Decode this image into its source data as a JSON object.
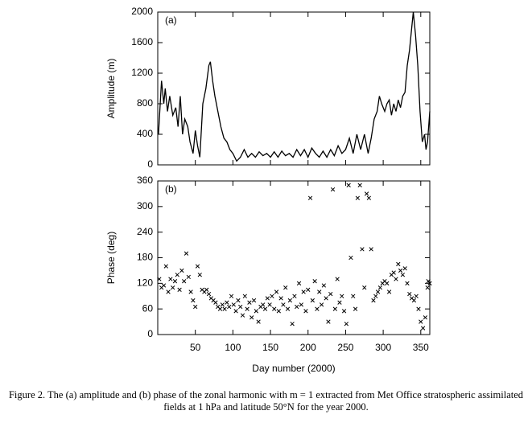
{
  "chart_data": [
    {
      "type": "line",
      "panel_label": "(a)",
      "ylabel": "Amplitude (m)",
      "color": "#000000",
      "xticklabels": false,
      "xlim": [
        0,
        362
      ],
      "xticks": [
        50,
        100,
        150,
        200,
        250,
        300,
        350
      ],
      "ylim": [
        0,
        2000
      ],
      "yticks": [
        0,
        400,
        800,
        1200,
        1600,
        2000
      ],
      "x": [
        1,
        5,
        8,
        10,
        13,
        16,
        20,
        24,
        27,
        30,
        33,
        36,
        40,
        43,
        47,
        50,
        53,
        56,
        60,
        64,
        68,
        70,
        73,
        76,
        80,
        84,
        88,
        92,
        96,
        100,
        105,
        110,
        115,
        120,
        125,
        130,
        135,
        140,
        145,
        150,
        155,
        160,
        165,
        170,
        175,
        180,
        185,
        190,
        195,
        200,
        205,
        210,
        215,
        220,
        225,
        230,
        235,
        240,
        245,
        250,
        255,
        260,
        265,
        270,
        275,
        280,
        284,
        288,
        292,
        295,
        298,
        302,
        305,
        308,
        311,
        314,
        317,
        320,
        323,
        326,
        329,
        332,
        335,
        338,
        340,
        343,
        346,
        349,
        352,
        355,
        357,
        359,
        362
      ],
      "values": [
        400,
        1100,
        800,
        1000,
        700,
        900,
        650,
        750,
        500,
        900,
        400,
        600,
        500,
        300,
        150,
        450,
        250,
        100,
        800,
        1000,
        1300,
        1350,
        1100,
        900,
        700,
        500,
        350,
        300,
        200,
        150,
        50,
        100,
        200,
        100,
        150,
        100,
        170,
        120,
        150,
        100,
        170,
        100,
        180,
        120,
        150,
        100,
        200,
        120,
        200,
        100,
        220,
        150,
        100,
        180,
        100,
        200,
        120,
        250,
        150,
        200,
        350,
        150,
        400,
        200,
        400,
        150,
        350,
        600,
        700,
        900,
        800,
        700,
        800,
        850,
        650,
        800,
        700,
        850,
        750,
        900,
        950,
        1300,
        1500,
        1800,
        2000,
        1700,
        1300,
        700,
        300,
        400,
        200,
        300,
        700
      ]
    },
    {
      "type": "scatter",
      "panel_label": "(b)",
      "ylabel": "Phase (deg)",
      "xlabel": "Day number (2000)",
      "color": "#000000",
      "xticklabels": true,
      "xlim": [
        0,
        362
      ],
      "xticks": [
        50,
        100,
        150,
        200,
        250,
        300,
        350
      ],
      "ylim": [
        0,
        360
      ],
      "yticks": [
        0,
        60,
        120,
        180,
        240,
        300,
        360
      ],
      "x": [
        2,
        5,
        8,
        11,
        14,
        17,
        20,
        23,
        26,
        29,
        32,
        35,
        38,
        41,
        44,
        47,
        50,
        53,
        56,
        59,
        62,
        65,
        68,
        71,
        74,
        77,
        80,
        83,
        86,
        89,
        92,
        95,
        98,
        101,
        104,
        107,
        110,
        113,
        116,
        119,
        122,
        125,
        128,
        131,
        134,
        137,
        140,
        143,
        146,
        149,
        152,
        155,
        158,
        161,
        164,
        167,
        170,
        173,
        176,
        179,
        182,
        185,
        188,
        191,
        194,
        197,
        200,
        203,
        206,
        209,
        212,
        215,
        218,
        221,
        224,
        227,
        230,
        233,
        236,
        239,
        242,
        245,
        248,
        251,
        254,
        257,
        260,
        263,
        266,
        269,
        272,
        275,
        278,
        281,
        284,
        287,
        290,
        293,
        296,
        299,
        302,
        305,
        308,
        311,
        314,
        317,
        320,
        323,
        326,
        329,
        332,
        335,
        338,
        341,
        344,
        347,
        350,
        353,
        356,
        359,
        360,
        362
      ],
      "values": [
        130,
        110,
        115,
        160,
        100,
        130,
        110,
        125,
        140,
        105,
        150,
        125,
        190,
        135,
        100,
        80,
        65,
        160,
        140,
        105,
        100,
        105,
        95,
        85,
        80,
        75,
        65,
        60,
        70,
        60,
        75,
        65,
        90,
        70,
        55,
        80,
        65,
        45,
        90,
        60,
        75,
        40,
        80,
        55,
        30,
        65,
        70,
        60,
        85,
        70,
        90,
        60,
        100,
        55,
        85,
        70,
        110,
        60,
        80,
        25,
        90,
        65,
        120,
        70,
        100,
        55,
        105,
        320,
        80,
        125,
        60,
        100,
        70,
        115,
        85,
        30,
        95,
        340,
        60,
        130,
        75,
        90,
        55,
        25,
        350,
        180,
        90,
        60,
        320,
        350,
        200,
        110,
        330,
        320,
        200,
        80,
        90,
        100,
        110,
        120,
        125,
        120,
        100,
        140,
        145,
        130,
        165,
        150,
        140,
        155,
        120,
        95,
        85,
        80,
        90,
        60,
        30,
        15,
        40,
        110,
        125,
        120
      ]
    }
  ],
  "caption": "Figure 2.   The (a) amplitude and (b) phase of the zonal harmonic with m = 1 extracted from Met Office stratospheric assimilated fields at 1 hPa and latitude 50°N for the year 2000."
}
